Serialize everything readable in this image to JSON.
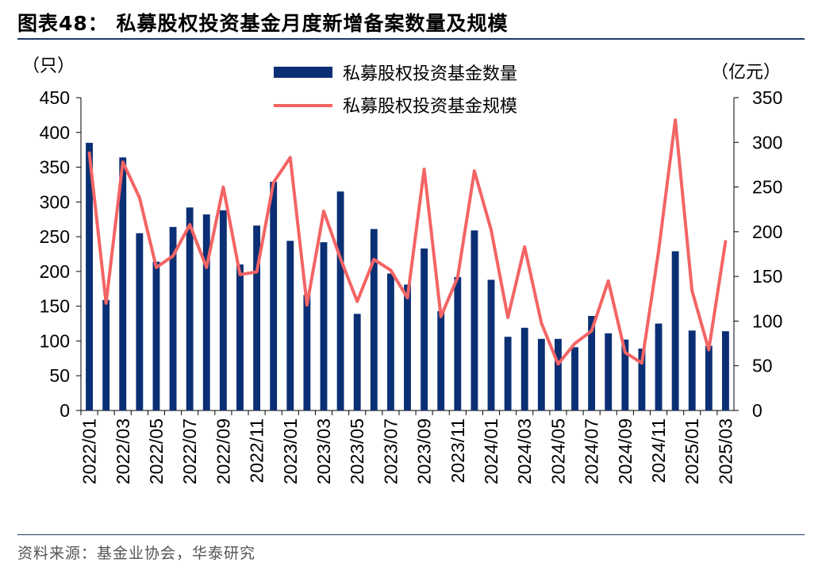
{
  "header": {
    "title": "图表48：  私募股权投资基金月度新增备案数量及规模"
  },
  "footer": {
    "source": "资料来源：基金业协会，华泰研究"
  },
  "colors": {
    "bar": "#0b2f74",
    "line": "#f36464",
    "rule": "#1f3864"
  },
  "chart_data": {
    "type": "bar+line",
    "left_unit": "（只）",
    "right_unit": "（亿元）",
    "left_ticks": [
      "0",
      "50",
      "100",
      "150",
      "200",
      "250",
      "300",
      "350",
      "400",
      "450"
    ],
    "right_ticks": [
      "0",
      "50",
      "100",
      "150",
      "200",
      "250",
      "300",
      "350"
    ],
    "ylim_left": [
      0,
      450
    ],
    "ylim_right": [
      0,
      350
    ],
    "x_tick_labels": [
      "2022/01",
      "2022/03",
      "2022/05",
      "2022/07",
      "2022/09",
      "2022/11",
      "2023/01",
      "2023/03",
      "2023/05",
      "2023/07",
      "2023/09",
      "2023/11",
      "2024/01",
      "2024/03",
      "2024/05",
      "2024/07",
      "2024/09",
      "2024/11",
      "2025/01",
      "2025/03"
    ],
    "categories": [
      "2022/01",
      "2022/02",
      "2022/03",
      "2022/04",
      "2022/05",
      "2022/06",
      "2022/07",
      "2022/08",
      "2022/09",
      "2022/10",
      "2022/11",
      "2022/12",
      "2023/01",
      "2023/02",
      "2023/03",
      "2023/04",
      "2023/05",
      "2023/06",
      "2023/07",
      "2023/08",
      "2023/09",
      "2023/10",
      "2023/11",
      "2023/12",
      "2024/01",
      "2024/02",
      "2024/03",
      "2024/04",
      "2024/05",
      "2024/06",
      "2024/07",
      "2024/08",
      "2024/09",
      "2024/10",
      "2024/11",
      "2024/12",
      "2025/01",
      "2025/02",
      "2025/03"
    ],
    "series": [
      {
        "name": "私募股权投资基金数量",
        "kind": "bar",
        "axis": "left",
        "values": [
          385,
          159,
          364,
          255,
          214,
          264,
          292,
          282,
          288,
          210,
          266,
          329,
          244,
          166,
          242,
          315,
          139,
          261,
          197,
          181,
          233,
          143,
          192,
          259,
          188,
          106,
          119,
          103,
          103,
          91,
          136,
          111,
          102,
          89,
          125,
          229,
          115,
          93,
          114
        ]
      },
      {
        "name": "私募股权投资基金规模",
        "kind": "line",
        "axis": "right",
        "values": [
          288,
          120,
          278,
          238,
          160,
          173,
          208,
          160,
          250,
          152,
          155,
          255,
          283,
          118,
          223,
          170,
          122,
          169,
          157,
          126,
          270,
          105,
          149,
          268,
          202,
          104,
          183,
          98,
          52,
          75,
          89,
          145,
          65,
          53,
          178,
          325,
          134,
          68,
          189
        ]
      }
    ],
    "legend_position": "top-center",
    "grid": false
  }
}
